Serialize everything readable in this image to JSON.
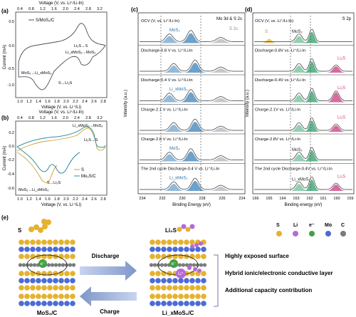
{
  "panel_labels": {
    "a": "(a)",
    "b": "(b)",
    "c": "(c)",
    "d": "(d)",
    "e": "(e)"
  },
  "panel_a": {
    "top_axis_label": "Voltage (V, vs. Li⁺/Li-In)",
    "bottom_axis_label": "Voltage (V, vs. Li⁺/Li)",
    "y_axis_label": "Current (mA)",
    "legend": "S/MoS₂/C",
    "annotations": [
      "Li₂S→S",
      "Li_xMoS₂→MoS₂",
      "MoS₂→Li_xMoS₂",
      "S→Li₂S"
    ],
    "top_ticks": [
      "0.4",
      "0.8",
      "1.2",
      "1.6",
      "2.0",
      "2.4",
      "2.8",
      "3.2"
    ],
    "bottom_ticks": [
      "1.0",
      "1.2",
      "1.4",
      "1.6",
      "1.8",
      "2.0",
      "2.2",
      "2.4",
      "2.6",
      "2.8"
    ],
    "y_ticks": [
      "0.5",
      "0.0",
      "-0.5",
      "-1.0"
    ]
  },
  "panel_b": {
    "top_axis_label": "Voltage (V, vs. Li⁺/Li-In)",
    "bottom_axis_label": "Voltage (V, vs. Li⁺/Li)",
    "y_axis_label": "Current (mA)",
    "legend": [
      "S",
      "Mo₂S/C"
    ],
    "annotations": [
      "Li_xMoS₂→MoS₂",
      "Li₂S→S",
      "MoS₂→Li_xMoS₂",
      "S→Li₂S"
    ],
    "top_ticks": [
      "0.4",
      "0.8",
      "1.2",
      "1.6",
      "2.0",
      "2.4",
      "2.8",
      "3.2"
    ],
    "bottom_ticks": [
      "1.0",
      "1.2",
      "1.4",
      "1.6",
      "1.8",
      "2.0",
      "2.2",
      "2.4",
      "2.6",
      "2.8"
    ],
    "y_ticks": [
      "0.2",
      "0.0",
      "-0.2",
      "-0.4",
      "-0.6"
    ]
  },
  "panel_c": {
    "header_right": "Mo 3d & S 2s",
    "x_axis_label": "Binding Energy (eV)",
    "y_axis_label": "Intensity (a.u.)",
    "x_ticks": [
      "234",
      "232",
      "230",
      "228",
      "226",
      "224"
    ],
    "rows": [
      {
        "label": "OCV (V, vs. Li⁺/Li-In)",
        "species": [
          "MoS₂"
        ],
        "side_label": "S 2s"
      },
      {
        "label": "Discharge-0.8 V vs. Li⁺/Li-In",
        "species": []
      },
      {
        "label": "Discharge-0.4 V vs. Li⁺/Li-In",
        "species": [
          "Li_xMoS₂"
        ]
      },
      {
        "label": "Charge-2.1 V vs. Li⁺/Li-In",
        "species": []
      },
      {
        "label": "Charge-2.8 V vs. Li⁺/Li-In",
        "species": [
          "MoS₂"
        ]
      },
      {
        "label": "The 2nd cycle Discharge-0.4 V vs. Li⁺/Li-In",
        "species": [
          "Li_xMoS₂"
        ]
      }
    ]
  },
  "panel_d": {
    "header_right": "S 2p",
    "x_axis_label": "Binding energy (eV)",
    "y_axis_label": "Intensity (a.u.)",
    "x_ticks": [
      "166",
      "165",
      "164",
      "163",
      "162",
      "161",
      "160",
      "159"
    ],
    "rows": [
      {
        "label": "OCV (V, vs. Li⁺/Li-In)",
        "species": [
          "MoS₂",
          "S"
        ]
      },
      {
        "label": "Discharge-0.8V vs. Li⁺/Li-In",
        "species": [
          "Li₂S"
        ]
      },
      {
        "label": "Discharge-0.4V vs. Li⁺/Li-In",
        "species": [
          "Li₂S"
        ]
      },
      {
        "label": "Charge-2.1V vs. Li⁺/Li-In",
        "species": [
          "Li₂S"
        ]
      },
      {
        "label": "Charge-2.8V vs. Li⁺/Li-In",
        "species": [
          "MoS₂"
        ]
      },
      {
        "label": "The 2nd cycle Discharge-0.4V vs. Li⁺/Li-In",
        "species": [
          "Li_xMoS₂",
          "Li₂S"
        ]
      }
    ]
  },
  "panel_e": {
    "left_species": "S",
    "right_species": "Li₂S",
    "left_caption": "MoS₂/C",
    "right_caption": "Li_xMoS₂/C",
    "discharge": "Discharge",
    "charge": "Charge",
    "electron": "e⁻",
    "lithium": "Li⁺",
    "legend": [
      "S",
      "Li",
      "e⁻",
      "Mo",
      "C"
    ],
    "legend_colors": [
      "#e5b22e",
      "#b46ad8",
      "#43a047",
      "#4c6bd6",
      "#7a7a7a"
    ],
    "features": [
      "Highly exposed surface",
      "Hybrid ionic/electronic conductive layer",
      "Additional capacity contribution"
    ]
  },
  "colors": {
    "s_yellow": "#e5b22e",
    "mo_blue": "#4c6bd6",
    "xps_blue": "#3d82b8",
    "xps_green": "#2e9d69",
    "xps_pink": "#c93a7c",
    "cv_teal": "#2f8ea0",
    "cv_yellow": "#c9a233"
  }
}
